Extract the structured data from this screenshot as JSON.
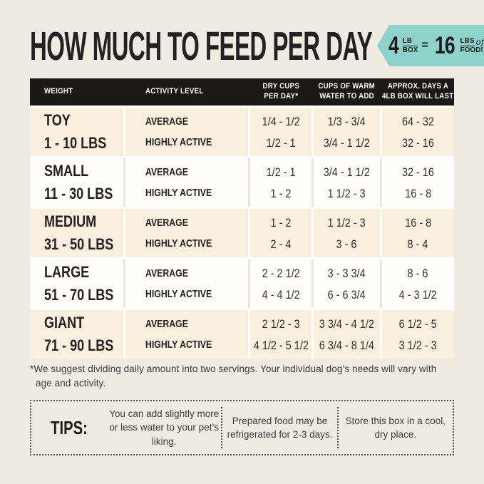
{
  "title": "HOW MUCH TO FEED PER DAY",
  "ribbon": {
    "qty_big": "4",
    "qty_unit_top": "LB",
    "qty_unit_bottom": "BOX",
    "equals": "=",
    "result_big": "16",
    "result_unit_top": "LBS",
    "result_script": "of",
    "result_unit_bottom": "FOOD!"
  },
  "table": {
    "header": [
      [
        "WEIGHT"
      ],
      [
        "ACTIVITY LEVEL"
      ],
      [
        "DRY CUPS",
        "PER DAY*"
      ],
      [
        "CUPS OF WARM",
        "WATER TO ADD"
      ],
      [
        "APPROX. DAYS A",
        "4LB BOX WILL LAST"
      ]
    ],
    "rows": [
      {
        "size": "TOY",
        "range": "1 - 10 LBS",
        "activity": [
          "AVERAGE",
          "HIGHLY ACTIVE"
        ],
        "dry_cups": [
          "1/4 - 1/2",
          "1/2 - 1"
        ],
        "water": [
          "1/3 - 3/4",
          "3/4 - 1 1/2"
        ],
        "days": [
          "64 - 32",
          "32 - 16"
        ]
      },
      {
        "size": "SMALL",
        "range": "11 - 30 LBS",
        "activity": [
          "AVERAGE",
          "HIGHLY ACTIVE"
        ],
        "dry_cups": [
          "1/2 - 1",
          "1 - 2"
        ],
        "water": [
          "3/4 - 1 1/2",
          "1 1/2 - 3"
        ],
        "days": [
          "32 - 16",
          "16 - 8"
        ]
      },
      {
        "size": "MEDIUM",
        "range": "31 - 50 LBS",
        "activity": [
          "AVERAGE",
          "HIGHLY ACTIVE"
        ],
        "dry_cups": [
          "1 - 2",
          "2 - 4"
        ],
        "water": [
          "1 1/2 - 3",
          "3 - 6"
        ],
        "days": [
          "16 - 8",
          "8 - 4"
        ]
      },
      {
        "size": "LARGE",
        "range": "51 - 70 LBS",
        "activity": [
          "AVERAGE",
          "HIGHLY ACTIVE"
        ],
        "dry_cups": [
          "2 - 2 1/2",
          "4 - 4 1/2"
        ],
        "water": [
          "3 - 3 3/4",
          "6 - 6 3/4"
        ],
        "days": [
          "8 - 6",
          "4 - 3 1/2"
        ]
      },
      {
        "size": "GIANT",
        "range": "71 - 90 LBS",
        "activity": [
          "AVERAGE",
          "HIGHLY ACTIVE"
        ],
        "dry_cups": [
          "2 1/2 - 3",
          "4 1/2 - 5 1/2"
        ],
        "water": [
          "3 3/4 - 4 1/2",
          "6 3/4 - 8 1/4"
        ],
        "days": [
          "6 1/2 - 5",
          "3 1/2 - 3"
        ]
      }
    ]
  },
  "footnote": "*We suggest dividing daily amount into two servings. Your individual dog’s needs will vary with age and activity.",
  "tips": {
    "label": "TIPS:",
    "items": [
      "You can add slightly more or less water to your pet’s liking.",
      "Prepared food may be refrigerated for 2-3 days.",
      "Store this box in a cool, dry place."
    ]
  },
  "colors": {
    "page-bg": "#f0ebe2",
    "cream": "#f8efdf",
    "header-bg": "#1c1817",
    "ink": "#262120",
    "accent": "#8ed3cb",
    "muted": "#3b3b3b",
    "dot": "#4a4a4a"
  }
}
